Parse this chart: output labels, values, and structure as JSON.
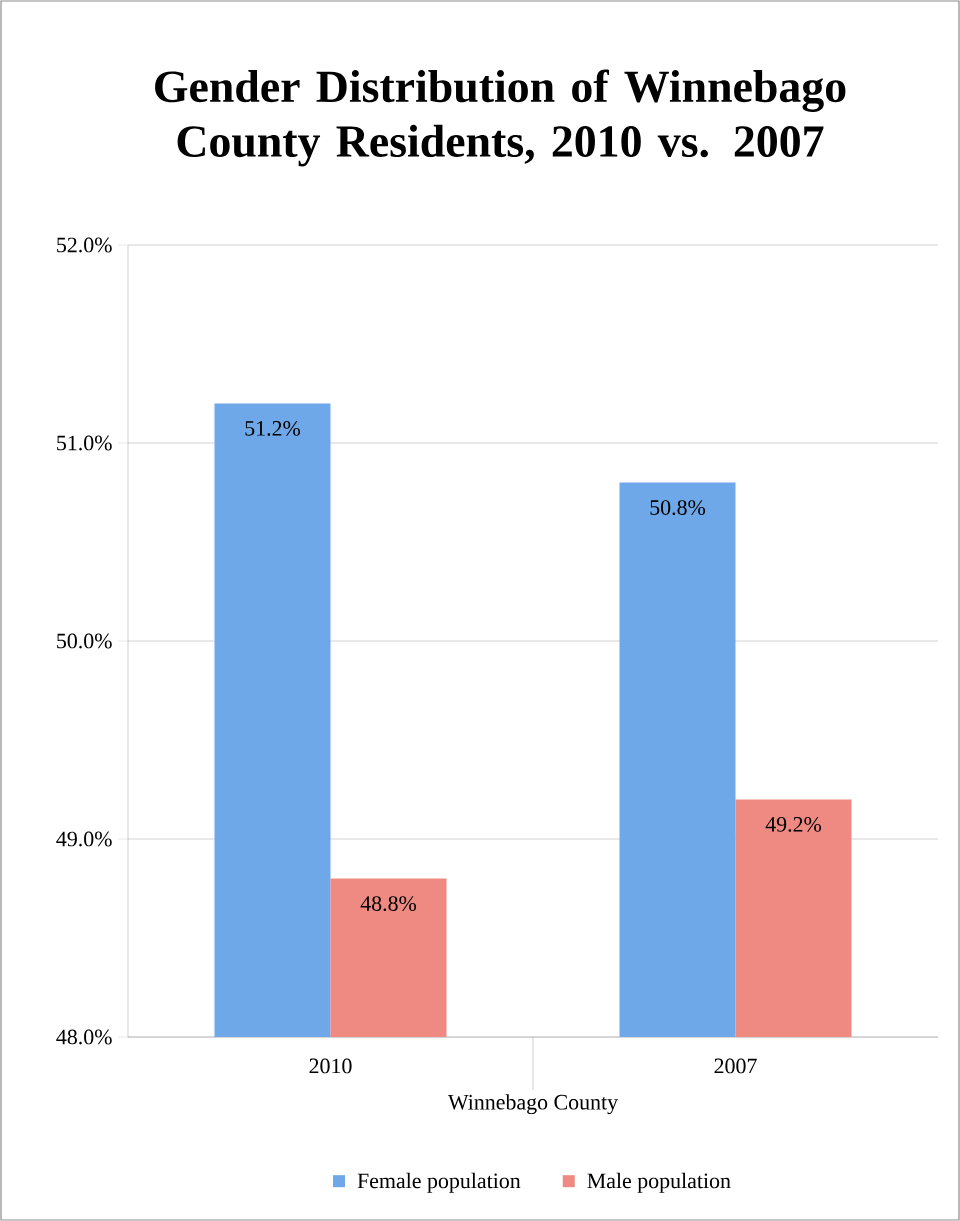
{
  "chart_data": {
    "type": "bar",
    "title": "Gender Distribution of Winnebago County Residents, 2010 vs. 2007",
    "xlabel": "Winnebago County",
    "categories": [
      "2010",
      "2007"
    ],
    "series": [
      {
        "name": "Female population",
        "color": "#6fa8e8",
        "values": [
          51.2,
          50.8
        ],
        "value_labels": [
          "51.2%",
          "50.8%"
        ]
      },
      {
        "name": "Male population",
        "color": "#ef8a82",
        "values": [
          48.8,
          49.2
        ],
        "value_labels": [
          "48.8%",
          "49.2%"
        ]
      }
    ],
    "ylim": [
      48,
      52
    ],
    "yticks": [
      {
        "value": 48,
        "label": "48.0%"
      },
      {
        "value": 49,
        "label": "49.0%"
      },
      {
        "value": 50,
        "label": "50.0%"
      },
      {
        "value": 51,
        "label": "51.0%"
      },
      {
        "value": 52,
        "label": "52.0%"
      }
    ],
    "grid": "y",
    "legend": "bottom"
  }
}
